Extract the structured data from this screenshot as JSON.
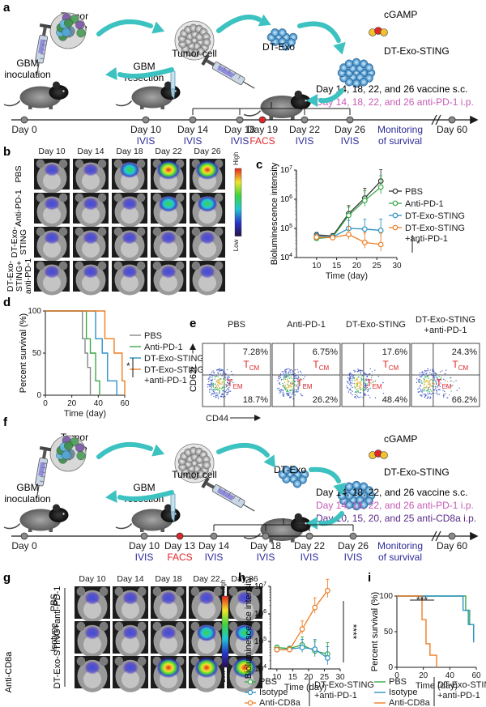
{
  "panel_a": {
    "letter": "a",
    "tumor_tissue": "Tumor\ntissue",
    "gbm_inoculation": "GBM\ninoculation",
    "gbm_resection": "GBM\nresection",
    "tumor_cell": "Tumor cell",
    "dt_exo": "DT-Exo",
    "cgamp": "cGAMP",
    "dt_exo_sting": "DT-Exo-STING",
    "schedule_vaccine": "Day 14, 18, 22, and 26 vaccine s.c.",
    "schedule_antipd1": "Day 14, 18, 22, and 26 anti-PD-1 i.p.",
    "timeline": [
      {
        "day": "Day 0",
        "sub": ""
      },
      {
        "day": "Day 10",
        "sub": "IVIS"
      },
      {
        "day": "Day 14",
        "sub": "IVIS"
      },
      {
        "day": "Day 18",
        "sub": "IVIS"
      },
      {
        "day": "Day 19",
        "sub": "FACS"
      },
      {
        "day": "Day 22",
        "sub": "IVIS"
      },
      {
        "day": "Day 26",
        "sub": "IVIS"
      },
      {
        "day": "Day 60",
        "sub": ""
      }
    ],
    "monitoring": "Monitoring\nof survival"
  },
  "panel_b": {
    "letter": "b",
    "days": [
      "Day 10",
      "Day 14",
      "Day 18",
      "Day 22",
      "Day 26"
    ],
    "rows": [
      "PBS",
      "Anti-PD-1",
      "DT-Exo-\nSTING",
      "DT-Exo-\nSTING+\nanti-PD-1"
    ],
    "scale_high": "High",
    "scale_low": "Low"
  },
  "panel_c": {
    "letter": "c",
    "significance": "*"
  },
  "panel_d": {
    "letter": "d",
    "significance": "*"
  },
  "panel_e": {
    "letter": "e",
    "columns": [
      {
        "title": "PBS",
        "tcm": "7.28%",
        "tem": "18.7%"
      },
      {
        "title": "Anti-PD-1",
        "tcm": "6.75%",
        "tem": "26.2%"
      },
      {
        "title": "DT-Exo-STING",
        "tcm": "17.6%",
        "tem": "48.4%"
      },
      {
        "title": "DT-Exo-STING\n+anti-PD-1",
        "tcm": "24.3%",
        "tem": "66.2%"
      }
    ],
    "tcm_label": "T",
    "tcm_sub": "CM",
    "tem_label": "T",
    "tem_sub": "EM",
    "ylabel": "CD62L",
    "xlabel": "CD44"
  },
  "panel_f": {
    "letter": "f",
    "tumor_tissue": "Tumor\ntissue",
    "gbm_inoculation": "GBM\ninoculation",
    "gbm_resection": "GBM\nresection",
    "tumor_cell": "Tumor cell",
    "dt_exo": "DT-Exo",
    "cgamp": "cGAMP",
    "dt_exo_sting": "DT-Exo-STING",
    "schedule_vaccine": "Day 14, 18, 22, and 26 vaccine s.c.",
    "schedule_antipd1": "Day 14, 18, 22, and 26 anti-PD-1 i.p.",
    "schedule_cd8": "Day 10, 15, 20, and 25 anti-CD8a i.p.",
    "timeline": [
      {
        "day": "Day 0",
        "sub": ""
      },
      {
        "day": "Day 10",
        "sub": "IVIS"
      },
      {
        "day": "Day 13",
        "sub": "FACS"
      },
      {
        "day": "Day 14",
        "sub": "IVIS"
      },
      {
        "day": "Day 18",
        "sub": "IVIS"
      },
      {
        "day": "Day 22",
        "sub": "IVIS"
      },
      {
        "day": "Day 26",
        "sub": "IVIS"
      },
      {
        "day": "Day 60",
        "sub": ""
      }
    ],
    "monitoring": "Monitoring\nof survival"
  },
  "panel_g": {
    "letter": "g",
    "days": [
      "Day 10",
      "Day 14",
      "Day 18",
      "Day 22",
      "Day 26"
    ],
    "rows": [
      "PBS",
      "Isotype",
      "Anti-CD8a"
    ],
    "group_label": "DT-Exo-STING+anti-PD-1",
    "scale_high": "High",
    "scale_low": "Low"
  },
  "panel_h": {
    "letter": "h",
    "significance": "****",
    "legend_group": "DT-Exo-STING\n+anti-PD-1"
  },
  "panel_i": {
    "letter": "i",
    "significance": "***",
    "legend_group": "DT-Exo-STING\n+anti-PD-1"
  },
  "colors": {
    "timeline_blue": "#2b2b9a",
    "pink": "#c65bb6",
    "purple": "#5a2a8a",
    "red_dot": "#e0262b",
    "teal_arrow": "#3cc2c0",
    "pbs_black": "#333333",
    "antipd1_green": "#3aaa4a",
    "sting_blue": "#2f93c6",
    "combo_orange": "#ef7d23",
    "tcell_red": "#e0262b"
  },
  "chart_data": [
    {
      "id": "c",
      "type": "line",
      "xlabel": "Time (day)",
      "ylabel": "Bioluminescence intensity",
      "xlim": [
        5,
        30
      ],
      "xticks": [
        10,
        15,
        20,
        25,
        30
      ],
      "ylim_log10": [
        4,
        7
      ],
      "yticks": [
        "10^4",
        "10^5",
        "10^6",
        "10^7"
      ],
      "log_scale_y": true,
      "legend_placement": "right",
      "x": [
        10,
        14,
        18,
        22,
        26
      ],
      "series": [
        {
          "name": "PBS",
          "color": "#333333",
          "values": [
            60000,
            55000,
            320000,
            1100000,
            4200000
          ]
        },
        {
          "name": "Anti-PD-1",
          "color": "#3aaa4a",
          "values": [
            45000,
            50000,
            280000,
            900000,
            2600000
          ]
        },
        {
          "name": "DT-Exo-STING",
          "color": "#2f93c6",
          "values": [
            55000,
            50000,
            100000,
            95000,
            85000
          ]
        },
        {
          "name": "DT-Exo-STING\n+anti-PD-1",
          "color": "#ef7d23",
          "values": [
            50000,
            48000,
            62000,
            33000,
            28000
          ]
        }
      ]
    },
    {
      "id": "d",
      "type": "line",
      "xlabel": "Time (day)",
      "ylabel": "Percent survival (%)",
      "xlim": [
        0,
        60
      ],
      "xticks": [
        0,
        20,
        40,
        60
      ],
      "ylim": [
        0,
        100
      ],
      "yticks": [
        0,
        50,
        100
      ],
      "legend_placement": "right",
      "series": [
        {
          "name": "PBS",
          "color": "#888888",
          "times": [
            0,
            25,
            28,
            30,
            32,
            34
          ],
          "survival": [
            100,
            100,
            67,
            50,
            33,
            0
          ]
        },
        {
          "name": "Anti-PD-1",
          "color": "#3aaa4a",
          "times": [
            0,
            28,
            31,
            34,
            38,
            41
          ],
          "survival": [
            100,
            100,
            67,
            50,
            17,
            0
          ]
        },
        {
          "name": "DT-Exo-STING",
          "color": "#2f93c6",
          "times": [
            0,
            33,
            38,
            43,
            47,
            54
          ],
          "survival": [
            100,
            100,
            67,
            50,
            17,
            0
          ]
        },
        {
          "name": "DT-Exo-STING\n+anti-PD-1",
          "color": "#ef7d23",
          "times": [
            0,
            40,
            45,
            52,
            58,
            60
          ],
          "survival": [
            100,
            100,
            67,
            50,
            17,
            0
          ]
        }
      ]
    },
    {
      "id": "h",
      "type": "line",
      "xlabel": "Time (day)",
      "ylabel": "Bioluminescence intensity",
      "xlim": [
        8,
        30
      ],
      "xticks": [
        10,
        15,
        20,
        25,
        30
      ],
      "ylim_log10": [
        4,
        7
      ],
      "yticks": [
        "10^4",
        "10^5",
        "10^6",
        "10^7"
      ],
      "log_scale_y": true,
      "legend_placement": "bottom",
      "x": [
        10,
        14,
        18,
        22,
        26
      ],
      "series": [
        {
          "name": "PBS",
          "color": "#3aaa4a",
          "values": [
            60000,
            55000,
            75000,
            45000,
            35000
          ]
        },
        {
          "name": "Isotype",
          "color": "#2f93c6",
          "values": [
            50000,
            52000,
            60000,
            52000,
            25000
          ]
        },
        {
          "name": "Anti-CD8a",
          "color": "#ef7d23",
          "values": [
            50000,
            50000,
            280000,
            1700000,
            7000000
          ]
        }
      ]
    },
    {
      "id": "i",
      "type": "line",
      "xlabel": "Time (day)",
      "ylabel": "Percent survival (%)",
      "xlim": [
        0,
        60
      ],
      "xticks": [
        0,
        20,
        40,
        60
      ],
      "ylim": [
        0,
        100
      ],
      "yticks": [
        0,
        50,
        100
      ],
      "legend_placement": "bottom",
      "series": [
        {
          "name": "PBS",
          "color": "#3aaa4a",
          "times": [
            0,
            48,
            52,
            55,
            58
          ],
          "survival": [
            100,
            100,
            80,
            60,
            40
          ]
        },
        {
          "name": "Isotype",
          "color": "#2f93c6",
          "times": [
            0,
            46,
            50,
            54,
            58
          ],
          "survival": [
            100,
            100,
            80,
            60,
            35
          ]
        },
        {
          "name": "Anti-CD8a",
          "color": "#ef7d23",
          "times": [
            0,
            16,
            19,
            22,
            25,
            30
          ],
          "survival": [
            100,
            100,
            67,
            33,
            17,
            0
          ]
        }
      ]
    }
  ]
}
